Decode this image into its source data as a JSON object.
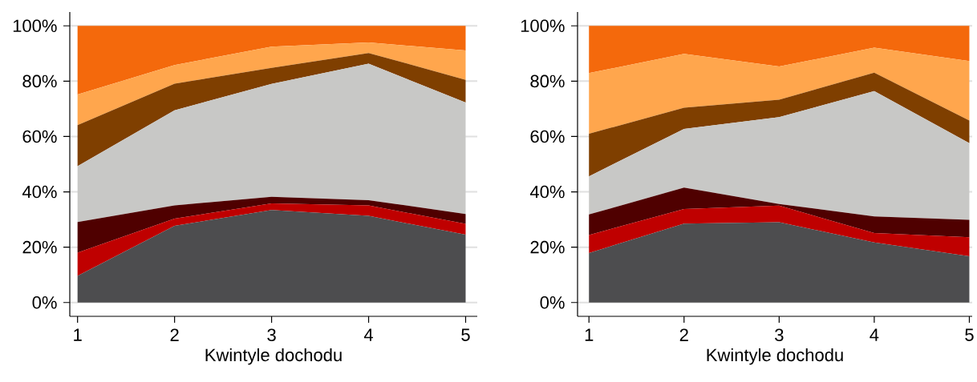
{
  "chart_data": [
    {
      "type": "area",
      "stacked": true,
      "xlabel": "Kwintyle dochodu",
      "x": [
        1,
        2,
        3,
        4,
        5
      ],
      "xlim": [
        0.92,
        5.12
      ],
      "ylim": [
        -5,
        105
      ],
      "xticks": [
        1,
        2,
        3,
        4,
        5
      ],
      "yticks": [
        {
          "value": 0,
          "label": "0%"
        },
        {
          "value": 20,
          "label": "20%"
        },
        {
          "value": 40,
          "label": "40%"
        },
        {
          "value": 60,
          "label": "60%"
        },
        {
          "value": 80,
          "label": "80%"
        },
        {
          "value": 100,
          "label": "100%"
        }
      ],
      "grid": "y",
      "series": [
        {
          "color": "#4d4d4f",
          "values": [
            9.6,
            27.7,
            33.4,
            31.3,
            24.5
          ]
        },
        {
          "color": "#bf0000",
          "values": [
            8.4,
            2.6,
            2.4,
            3.8,
            3.9
          ]
        },
        {
          "color": "#4f0000",
          "values": [
            11.1,
            4.8,
            2.4,
            1.9,
            3.6
          ]
        },
        {
          "color": "#c8c8c6",
          "values": [
            20.2,
            34.4,
            40.8,
            49.3,
            40.3
          ]
        },
        {
          "color": "#7f3f00",
          "values": [
            14.8,
            9.6,
            5.8,
            3.9,
            8.2
          ]
        },
        {
          "color": "#ffa64d",
          "values": [
            11.1,
            6.7,
            7.7,
            3.8,
            10.6
          ]
        },
        {
          "color": "#f4690c",
          "values": [
            24.8,
            14.2,
            7.5,
            6.0,
            8.9
          ]
        }
      ]
    },
    {
      "type": "area",
      "stacked": true,
      "xlabel": "Kwintyle dochodu",
      "x": [
        1,
        2,
        3,
        4,
        5
      ],
      "xlim": [
        0.88,
        5.03
      ],
      "ylim": [
        -5,
        105
      ],
      "xticks": [
        1,
        2,
        3,
        4,
        5
      ],
      "yticks": [
        {
          "value": 0,
          "label": "0%"
        },
        {
          "value": 20,
          "label": "20%"
        },
        {
          "value": 40,
          "label": "40%"
        },
        {
          "value": 60,
          "label": "60%"
        },
        {
          "value": 80,
          "label": "80%"
        },
        {
          "value": 100,
          "label": "100%"
        }
      ],
      "grid": "y",
      "series": [
        {
          "color": "#4d4d4f",
          "values": [
            17.9,
            28.5,
            29.0,
            21.7,
            16.7
          ]
        },
        {
          "color": "#bf0000",
          "values": [
            6.5,
            5.3,
            6.0,
            3.4,
            6.9
          ]
        },
        {
          "color": "#4f0000",
          "values": [
            7.4,
            7.7,
            0.6,
            6.0,
            6.3
          ]
        },
        {
          "color": "#c8c8c6",
          "values": [
            13.8,
            21.2,
            31.4,
            45.3,
            27.7
          ]
        },
        {
          "color": "#7f3f00",
          "values": [
            15.4,
            7.7,
            6.3,
            6.7,
            8.2
          ]
        },
        {
          "color": "#ffa64d",
          "values": [
            21.9,
            19.5,
            12.0,
            9.0,
            21.5
          ]
        },
        {
          "color": "#f4690c",
          "values": [
            17.1,
            10.1,
            14.7,
            7.9,
            12.7
          ]
        }
      ]
    }
  ]
}
